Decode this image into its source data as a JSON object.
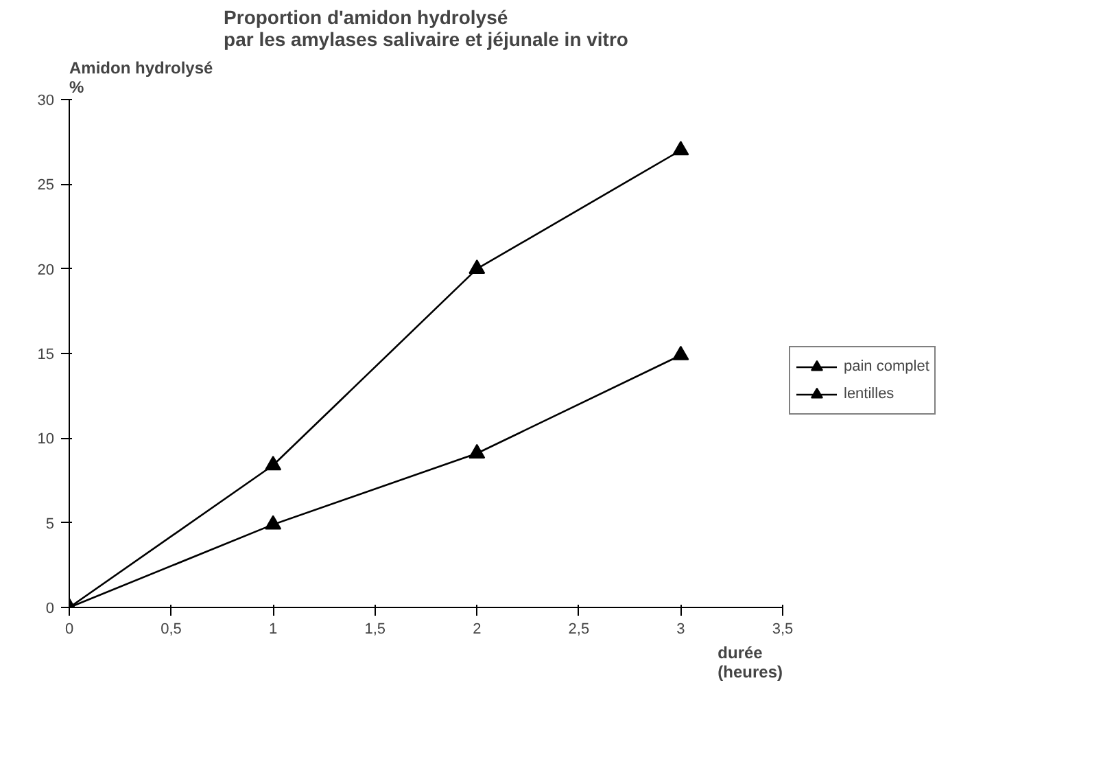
{
  "chart_data": {
    "type": "line",
    "title": "Proportion d'amidon hydrolysé\npar les amylases salivaire et jéjunale in vitro",
    "xlabel": "durée\n(heures)",
    "ylabel": "Amidon hydrolysé\n%",
    "x": [
      0,
      1,
      2,
      3
    ],
    "series": [
      {
        "name": "pain complet",
        "color": "#000000",
        "values": [
          0,
          8.4,
          20,
          27
        ]
      },
      {
        "name": "lentilles",
        "color": "#000000",
        "values": [
          0,
          4.9,
          9.1,
          14.9
        ]
      }
    ],
    "xlim": [
      0,
      3.5
    ],
    "xticks": [
      0,
      {
        "value": 0.5,
        "label": "0,5"
      },
      1,
      {
        "value": 1.5,
        "label": "1,5"
      },
      2,
      {
        "value": 2.5,
        "label": "2,5"
      },
      3,
      {
        "value": 3.5,
        "label": "3,5"
      }
    ],
    "ylim": [
      0,
      30
    ],
    "yticks": [
      0,
      5,
      10,
      15,
      20,
      25,
      30
    ],
    "grid": false,
    "legend": "right",
    "marker": "triangle",
    "line_style": "solid"
  }
}
